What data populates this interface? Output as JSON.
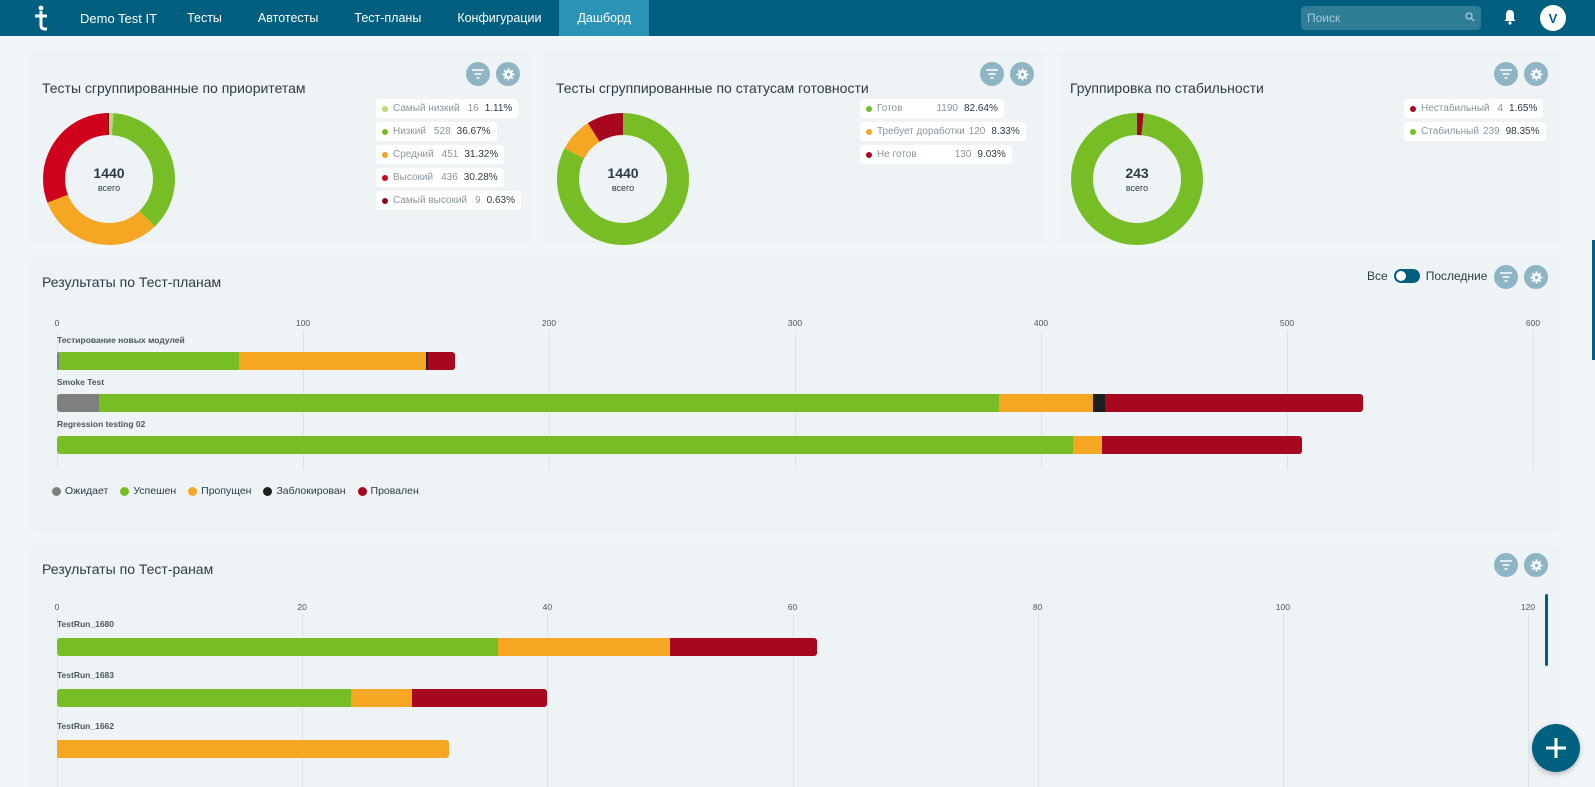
{
  "nav": {
    "project": "Demo Test IT",
    "items": [
      "Тесты",
      "Автотесты",
      "Тест-планы",
      "Конфигурации",
      "Дашборд"
    ],
    "active_index": 4,
    "search_placeholder": "Поиск",
    "avatar": "V",
    "icons": {
      "logo": "testit-logo-icon",
      "search": "search-icon",
      "bell": "bell-icon"
    }
  },
  "colors": {
    "nav_bg": "#005f7e",
    "active_tab": "#2b93b6",
    "waiting": "#7f7f7f",
    "passed": "#77bd25",
    "skipped": "#f5a623",
    "blocked": "#1e1e1e",
    "failed": "#a8081f",
    "lowest": "#b7d97a",
    "highest": "#8b0a1c",
    "high": "#d0021b"
  },
  "priority_card": {
    "title": "Тесты сгруппированные по приоритетам",
    "total": "1440",
    "total_label": "всего",
    "chart_data": {
      "type": "pie",
      "slices": [
        {
          "name": "Самый низкий",
          "count": 16,
          "pct": "1.11%",
          "value": 1.11,
          "color": "#b7d97a"
        },
        {
          "name": "Низкий",
          "count": 528,
          "pct": "36.67%",
          "value": 36.67,
          "color": "#77bd25"
        },
        {
          "name": "Средний",
          "count": 451,
          "pct": "31.32%",
          "value": 31.32,
          "color": "#f5a623"
        },
        {
          "name": "Высокий",
          "count": 436,
          "pct": "30.28%",
          "value": 30.28,
          "color": "#d0021b"
        },
        {
          "name": "Самый высокий",
          "count": 9,
          "pct": "0.63%",
          "value": 0.63,
          "color": "#8b0a1c"
        }
      ]
    }
  },
  "status_card": {
    "title": "Тесты сгруппированные по статусам готовности",
    "total": "1440",
    "total_label": "всего",
    "chart_data": {
      "type": "pie",
      "slices": [
        {
          "name": "Готов",
          "count": 1190,
          "pct": "82.64%",
          "value": 82.64,
          "color": "#77bd25"
        },
        {
          "name": "Требует доработки",
          "count": 120,
          "pct": "8.33%",
          "value": 8.33,
          "color": "#f5a623"
        },
        {
          "name": "Не готов",
          "count": 130,
          "pct": "9.03%",
          "value": 9.03,
          "color": "#a8081f"
        }
      ]
    }
  },
  "stability_card": {
    "title": "Группировка по стабильности",
    "total": "243",
    "total_label": "всего",
    "chart_data": {
      "type": "pie",
      "slices": [
        {
          "name": "Нестабильный",
          "count": 4,
          "pct": "1.65%",
          "value": 1.65,
          "color": "#a8081f"
        },
        {
          "name": "Стабильный",
          "count": 239,
          "pct": "98.35%",
          "value": 98.35,
          "color": "#77bd25"
        }
      ]
    }
  },
  "plans_card": {
    "title": "Результаты по Тест-планам",
    "toggle_all": "Все",
    "toggle_last": "Последние",
    "chart_data": {
      "type": "bar",
      "orientation": "horizontal",
      "stacked": true,
      "xlim": [
        0,
        600
      ],
      "ticks": [
        "0",
        "100",
        "200",
        "300",
        "400",
        "500",
        "600"
      ],
      "categories": [
        "Тестирование новых модулей",
        "Smoke Test",
        "Regression testing 02"
      ],
      "series": [
        {
          "name": "Ожидает",
          "values": [
            1,
            17,
            0
          ]
        },
        {
          "name": "Успешен",
          "values": [
            73,
            366,
            413
          ]
        },
        {
          "name": "Пропущен",
          "values": [
            76,
            38,
            12
          ]
        },
        {
          "name": "Заблокирован",
          "values": [
            1,
            5,
            0
          ]
        },
        {
          "name": "Провален",
          "values": [
            11,
            105,
            81
          ]
        }
      ]
    },
    "legend": [
      "Ожидает",
      "Успешен",
      "Пропущен",
      "Заблокирован",
      "Провален"
    ]
  },
  "runs_card": {
    "title": "Результаты по Тест-ранам",
    "chart_data": {
      "type": "bar",
      "orientation": "horizontal",
      "stacked": true,
      "xlim": [
        0,
        120
      ],
      "ticks": [
        "0",
        "20",
        "40",
        "60",
        "80",
        "100",
        "120"
      ],
      "categories": [
        "TestRun_1680",
        "TestRun_1683",
        "TestRun_1662"
      ],
      "series": [
        {
          "name": "Успешен",
          "values": [
            36,
            24,
            0
          ]
        },
        {
          "name": "Пропущен",
          "values": [
            14,
            5,
            32
          ]
        },
        {
          "name": "Провален",
          "values": [
            12,
            11,
            0
          ]
        }
      ]
    }
  }
}
